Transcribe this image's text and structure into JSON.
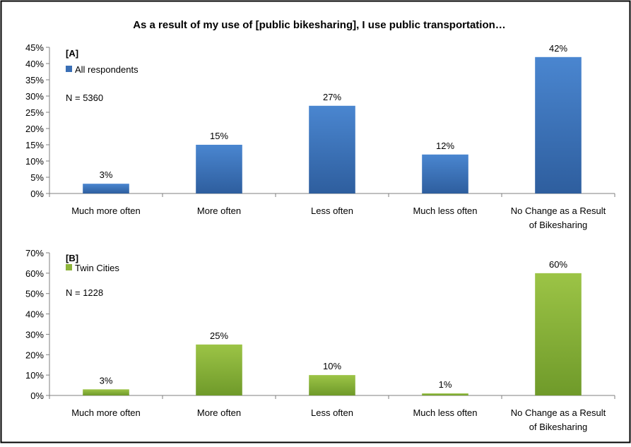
{
  "chart_title": "As a result of my use of [public bikesharing], I use public transportation…",
  "chart_data": [
    {
      "type": "bar",
      "panel_label": "[A]",
      "categories": [
        "Much more often",
        "More often",
        "Less often",
        "Much less often",
        "No Change as a Result of Bikesharing"
      ],
      "category_lines": [
        [
          "Much more often"
        ],
        [
          "More often"
        ],
        [
          "Less often"
        ],
        [
          "Much less often"
        ],
        [
          "No Change as a Result",
          "of Bikesharing"
        ]
      ],
      "series": [
        {
          "name": "All respondents",
          "values": [
            3,
            15,
            27,
            12,
            42
          ],
          "color": "#3a6fb5"
        }
      ],
      "data_labels": [
        "3%",
        "15%",
        "27%",
        "12%",
        "42%"
      ],
      "sample_size": "N = 5360",
      "ylim": [
        0,
        45
      ],
      "yticks": [
        0,
        5,
        10,
        15,
        20,
        25,
        30,
        35,
        40,
        45
      ],
      "ytick_labels": [
        "0%",
        "5%",
        "10%",
        "15%",
        "20%",
        "25%",
        "30%",
        "35%",
        "40%",
        "45%"
      ],
      "legend_position": "top-left",
      "grid": false
    },
    {
      "type": "bar",
      "panel_label": "[B]",
      "categories": [
        "Much more often",
        "More often",
        "Less often",
        "Much less often",
        "No Change as a Result of Bikesharing"
      ],
      "category_lines": [
        [
          "Much more often"
        ],
        [
          "More often"
        ],
        [
          "Less often"
        ],
        [
          "Much less often"
        ],
        [
          "No Change as a Result",
          "of Bikesharing"
        ]
      ],
      "series": [
        {
          "name": "Twin Cities",
          "values": [
            3,
            25,
            10,
            1,
            60
          ],
          "color": "#8db33a"
        }
      ],
      "data_labels": [
        "3%",
        "25%",
        "10%",
        "1%",
        "60%"
      ],
      "sample_size": "N = 1228",
      "ylim": [
        0,
        70
      ],
      "yticks": [
        0,
        10,
        20,
        30,
        40,
        50,
        60,
        70
      ],
      "ytick_labels": [
        "0%",
        "10%",
        "20%",
        "30%",
        "40%",
        "50%",
        "60%",
        "70%"
      ],
      "legend_position": "top-left",
      "grid": false
    }
  ]
}
